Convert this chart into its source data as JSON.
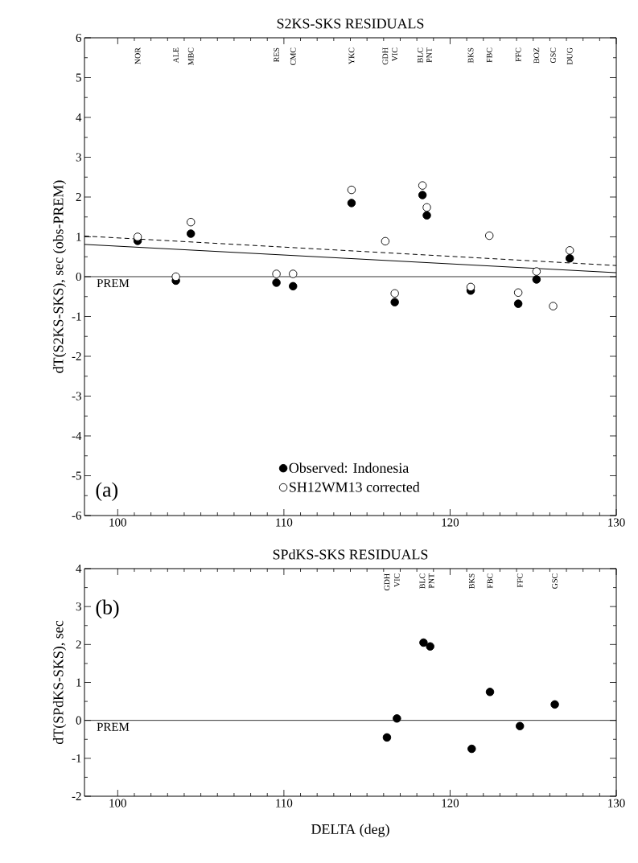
{
  "chart_data": [
    {
      "type": "scatter",
      "title": "S2KS-SKS RESIDUALS",
      "ylabel": "dT(S2KS-SKS), sec  (obs-PREM)",
      "xlim": [
        98,
        130
      ],
      "ylim": [
        -6,
        6
      ],
      "xticks": [
        100,
        110,
        120,
        130
      ],
      "yticks": [
        -6,
        -5,
        -4,
        -3,
        -2,
        -1,
        0,
        1,
        2,
        3,
        4,
        5,
        6
      ],
      "marker": "circle",
      "legend": "bottom",
      "series": [
        {
          "name": "Observed: Indonesia",
          "color": "#000000",
          "x": [
            101.2,
            103.5,
            104.4,
            109.55,
            110.55,
            114.07,
            116.1,
            116.67,
            118.34,
            118.6,
            121.24,
            122.36,
            124.1,
            125.2,
            126.2,
            127.2
          ],
          "values": [
            0.9,
            -0.1,
            1.08,
            -0.15,
            -0.24,
            1.85,
            null,
            -0.64,
            2.05,
            1.54,
            -0.35,
            null,
            -0.68,
            -0.07,
            null,
            0.46
          ]
        },
        {
          "name": "SH12WM13 corrected",
          "color": "#ffffff",
          "x": [
            101.2,
            103.5,
            104.4,
            109.55,
            110.55,
            114.07,
            116.1,
            116.67,
            118.34,
            118.6,
            121.24,
            122.36,
            124.1,
            125.2,
            126.2,
            127.2
          ],
          "values": [
            1.0,
            0.0,
            1.37,
            0.07,
            0.07,
            2.18,
            0.89,
            -0.42,
            2.29,
            1.74,
            -0.26,
            1.03,
            -0.4,
            0.13,
            -0.74,
            0.66
          ]
        },
        {
          "type": "line",
          "line_style": "dashed",
          "marker": "none",
          "color": "#000000",
          "x": [
            98,
            130
          ],
          "values": [
            1.02,
            0.28
          ]
        },
        {
          "type": "line",
          "line_style": "solid",
          "marker": "none",
          "color": "#000000",
          "x": [
            98,
            130
          ],
          "values": [
            0.81,
            0.1
          ]
        }
      ],
      "ref_lines": [
        {
          "axis": "y",
          "value": 0,
          "label": "PREM"
        }
      ],
      "annotations": [
        "(a)",
        "NOR",
        "ALE",
        "MBC",
        "RES",
        "CMC",
        "YKC",
        "GDH",
        "VIC",
        "BLC",
        "PNT",
        "BKS",
        "FBC",
        "FFC",
        "BOZ",
        "GSC",
        "DUG"
      ]
    },
    {
      "type": "scatter",
      "title": "SPdKS-SKS RESIDUALS",
      "xlabel": "DELTA (deg)",
      "ylabel": "dT(SPdKS-SKS), sec",
      "xlim": [
        98,
        130
      ],
      "ylim": [
        -2,
        4
      ],
      "xticks": [
        100,
        110,
        120,
        130
      ],
      "yticks": [
        -2,
        -1,
        0,
        1,
        2,
        3,
        4
      ],
      "marker": "circle",
      "series": [
        {
          "color": "#000000",
          "x": [
            116.2,
            116.8,
            118.4,
            118.8,
            121.3,
            122.4,
            124.2,
            126.3
          ],
          "values": [
            -0.45,
            0.05,
            2.05,
            1.95,
            -0.75,
            0.75,
            -0.15,
            0.42
          ]
        }
      ],
      "ref_lines": [
        {
          "axis": "y",
          "value": 0,
          "label": "PREM"
        }
      ],
      "annotations": [
        "(b)",
        "GDH",
        "VIC",
        "BLC",
        "PNT",
        "BKS",
        "FBC",
        "FFC",
        "GSC"
      ]
    }
  ]
}
